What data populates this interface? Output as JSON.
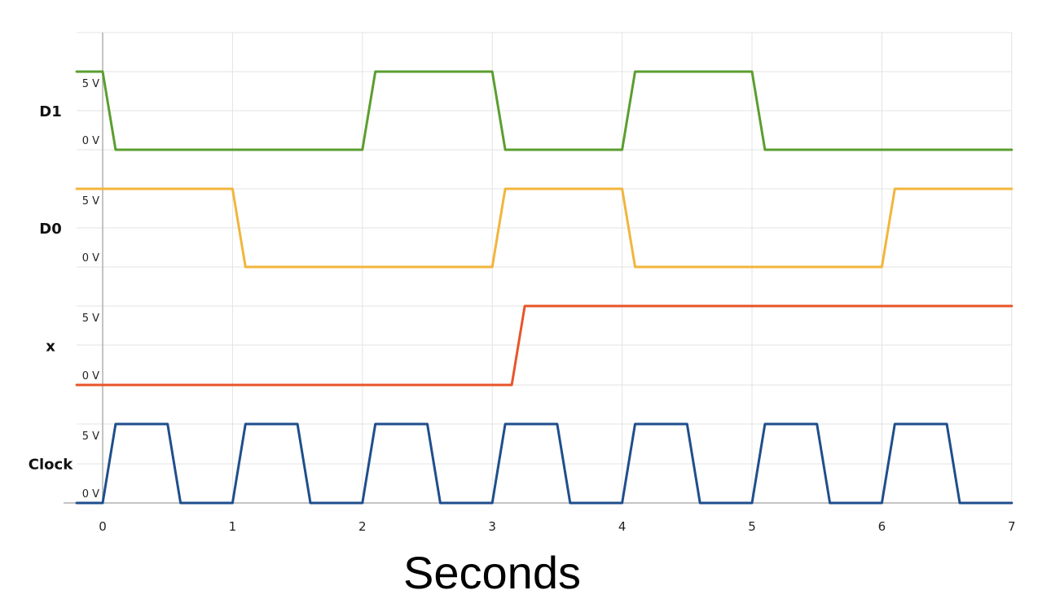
{
  "chart_data": {
    "type": "line",
    "xlabel": "Seconds",
    "xlim": [
      -0.2,
      7
    ],
    "x_ticks": [
      "0",
      "1",
      "2",
      "3",
      "4",
      "5",
      "6",
      "7"
    ],
    "grid": true,
    "volt_labels": {
      "high": "5 V",
      "low": "0 V"
    },
    "series": [
      {
        "name": "D1",
        "color": "#5b9e2f",
        "x": [
          -0.2,
          0,
          0.1,
          2.0,
          2.1,
          3.0,
          3.1,
          4.0,
          4.1,
          5.0,
          5.1,
          7
        ],
        "y": [
          5,
          5,
          0,
          0,
          5,
          5,
          0,
          0,
          5,
          5,
          0,
          0
        ]
      },
      {
        "name": "D0",
        "color": "#f2b53c",
        "x": [
          -0.2,
          1.0,
          1.1,
          3.0,
          3.1,
          4.0,
          4.1,
          6.0,
          6.1,
          7
        ],
        "y": [
          5,
          5,
          0,
          0,
          5,
          5,
          0,
          0,
          5,
          5
        ]
      },
      {
        "name": "x",
        "color": "#e8542a",
        "x": [
          -0.2,
          3.15,
          3.25,
          7
        ],
        "y": [
          0,
          0,
          5,
          5
        ]
      },
      {
        "name": "Clock",
        "color": "#1f4e8c",
        "x": [
          -0.2,
          0,
          0.1,
          0.5,
          0.6,
          1.0,
          1.1,
          1.5,
          1.6,
          2.0,
          2.1,
          2.5,
          2.6,
          3.0,
          3.1,
          3.5,
          3.6,
          4.0,
          4.1,
          4.5,
          4.6,
          5.0,
          5.1,
          5.5,
          5.6,
          6.0,
          6.1,
          6.5,
          6.6,
          7
        ],
        "y": [
          0,
          0,
          5,
          5,
          0,
          0,
          5,
          5,
          0,
          0,
          5,
          5,
          0,
          0,
          5,
          5,
          0,
          0,
          5,
          5,
          0,
          0,
          5,
          5,
          0,
          0,
          5,
          5,
          0,
          0
        ]
      }
    ]
  }
}
